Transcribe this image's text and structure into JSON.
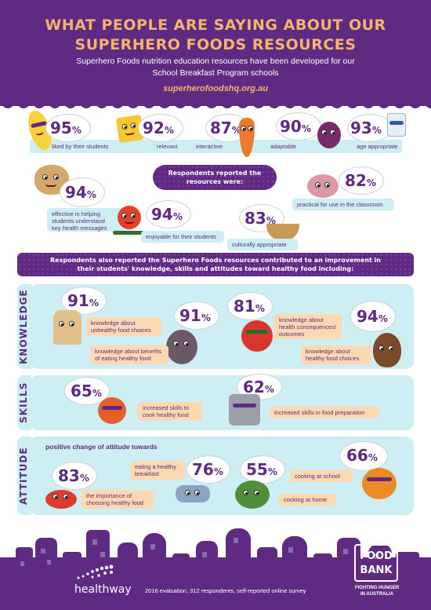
{
  "header": {
    "title_line1": "WHAT PEOPLE ARE SAYING ABOUT OUR",
    "title_line2": "SUPERHERO FOODS RESOURCES",
    "subtitle_line1": "Superhero Foods nutrition education resources have been developed for our",
    "subtitle_line2": "School Breakfast Program schools",
    "website": "superherofoodshq.org.au"
  },
  "top_stats": [
    {
      "value": "95",
      "label": "liked by their students"
    },
    {
      "value": "92",
      "label": "relevant"
    },
    {
      "value": "87",
      "label": "interactive"
    },
    {
      "value": "90",
      "label": "adaptable"
    },
    {
      "value": "93",
      "label": "age appropriate"
    }
  ],
  "percent_symbol": "%",
  "respondents_banner": {
    "line1": "Respondents reported the",
    "line2": "resources were:"
  },
  "resource_stats": [
    {
      "value": "94",
      "label_line1": "effective in helping",
      "label_line2": "students understand",
      "label_line3": "key health messages"
    },
    {
      "value": "94",
      "label": "enjoyable for their students"
    },
    {
      "value": "83",
      "label": "culturally appropriate"
    },
    {
      "value": "82",
      "label": "practical for use in the classroom"
    }
  ],
  "improvement_banner": {
    "line1": "Respondents also reported the Superhero Foods resources contributed to an improvement in",
    "line2": "their students' knowledge, skills and attitudes toward healthy food including:"
  },
  "knowledge": {
    "section_label": "KNOWLEDGE",
    "stats": [
      {
        "value": "91",
        "label_line1": "knowledge about",
        "label_line2": "unhealthy food choices"
      },
      {
        "value": "91",
        "label_line1": "knowledge about benefits",
        "label_line2": "of eating healthy food"
      },
      {
        "value": "81",
        "label_line1": "knowledge about",
        "label_line2": "health consequences/",
        "label_line3": "outcomes"
      },
      {
        "value": "94",
        "label_line1": "knowledge about",
        "label_line2": "healthy food choices"
      }
    ]
  },
  "skills": {
    "section_label": "SKILLS",
    "stats": [
      {
        "value": "65",
        "label_line1": "increased skills to",
        "label_line2": "cook healthy food"
      },
      {
        "value": "62",
        "label": "increased skills in food preparation"
      }
    ]
  },
  "attitude": {
    "section_label": "ATTITUDE",
    "heading": "positive change of attitude towards",
    "stats": [
      {
        "value": "83",
        "label_line1": "the importance of",
        "label_line2": "choosing healthy food"
      },
      {
        "value": "76",
        "label_line1": "eating a healthy",
        "label_line2": "breakfast"
      },
      {
        "value": "55",
        "label": "cooking at home"
      },
      {
        "value": "66",
        "label": "cooking at school"
      }
    ]
  },
  "footer": {
    "healthway": "healthway",
    "note": "2016 evaluation, 312 respondents, self-reported online survey",
    "foodbank_line1": "FOOD",
    "foodbank_line2": "BANK",
    "foodbank_tag_line1": "FIGHTING HUNGER",
    "foodbank_tag_line2": "IN AUSTRALIA"
  },
  "colors": {
    "purple": "#5e2a82",
    "orange": "#f7b36a",
    "cyan": "#cdeef3",
    "peach": "#fcd9b2"
  }
}
